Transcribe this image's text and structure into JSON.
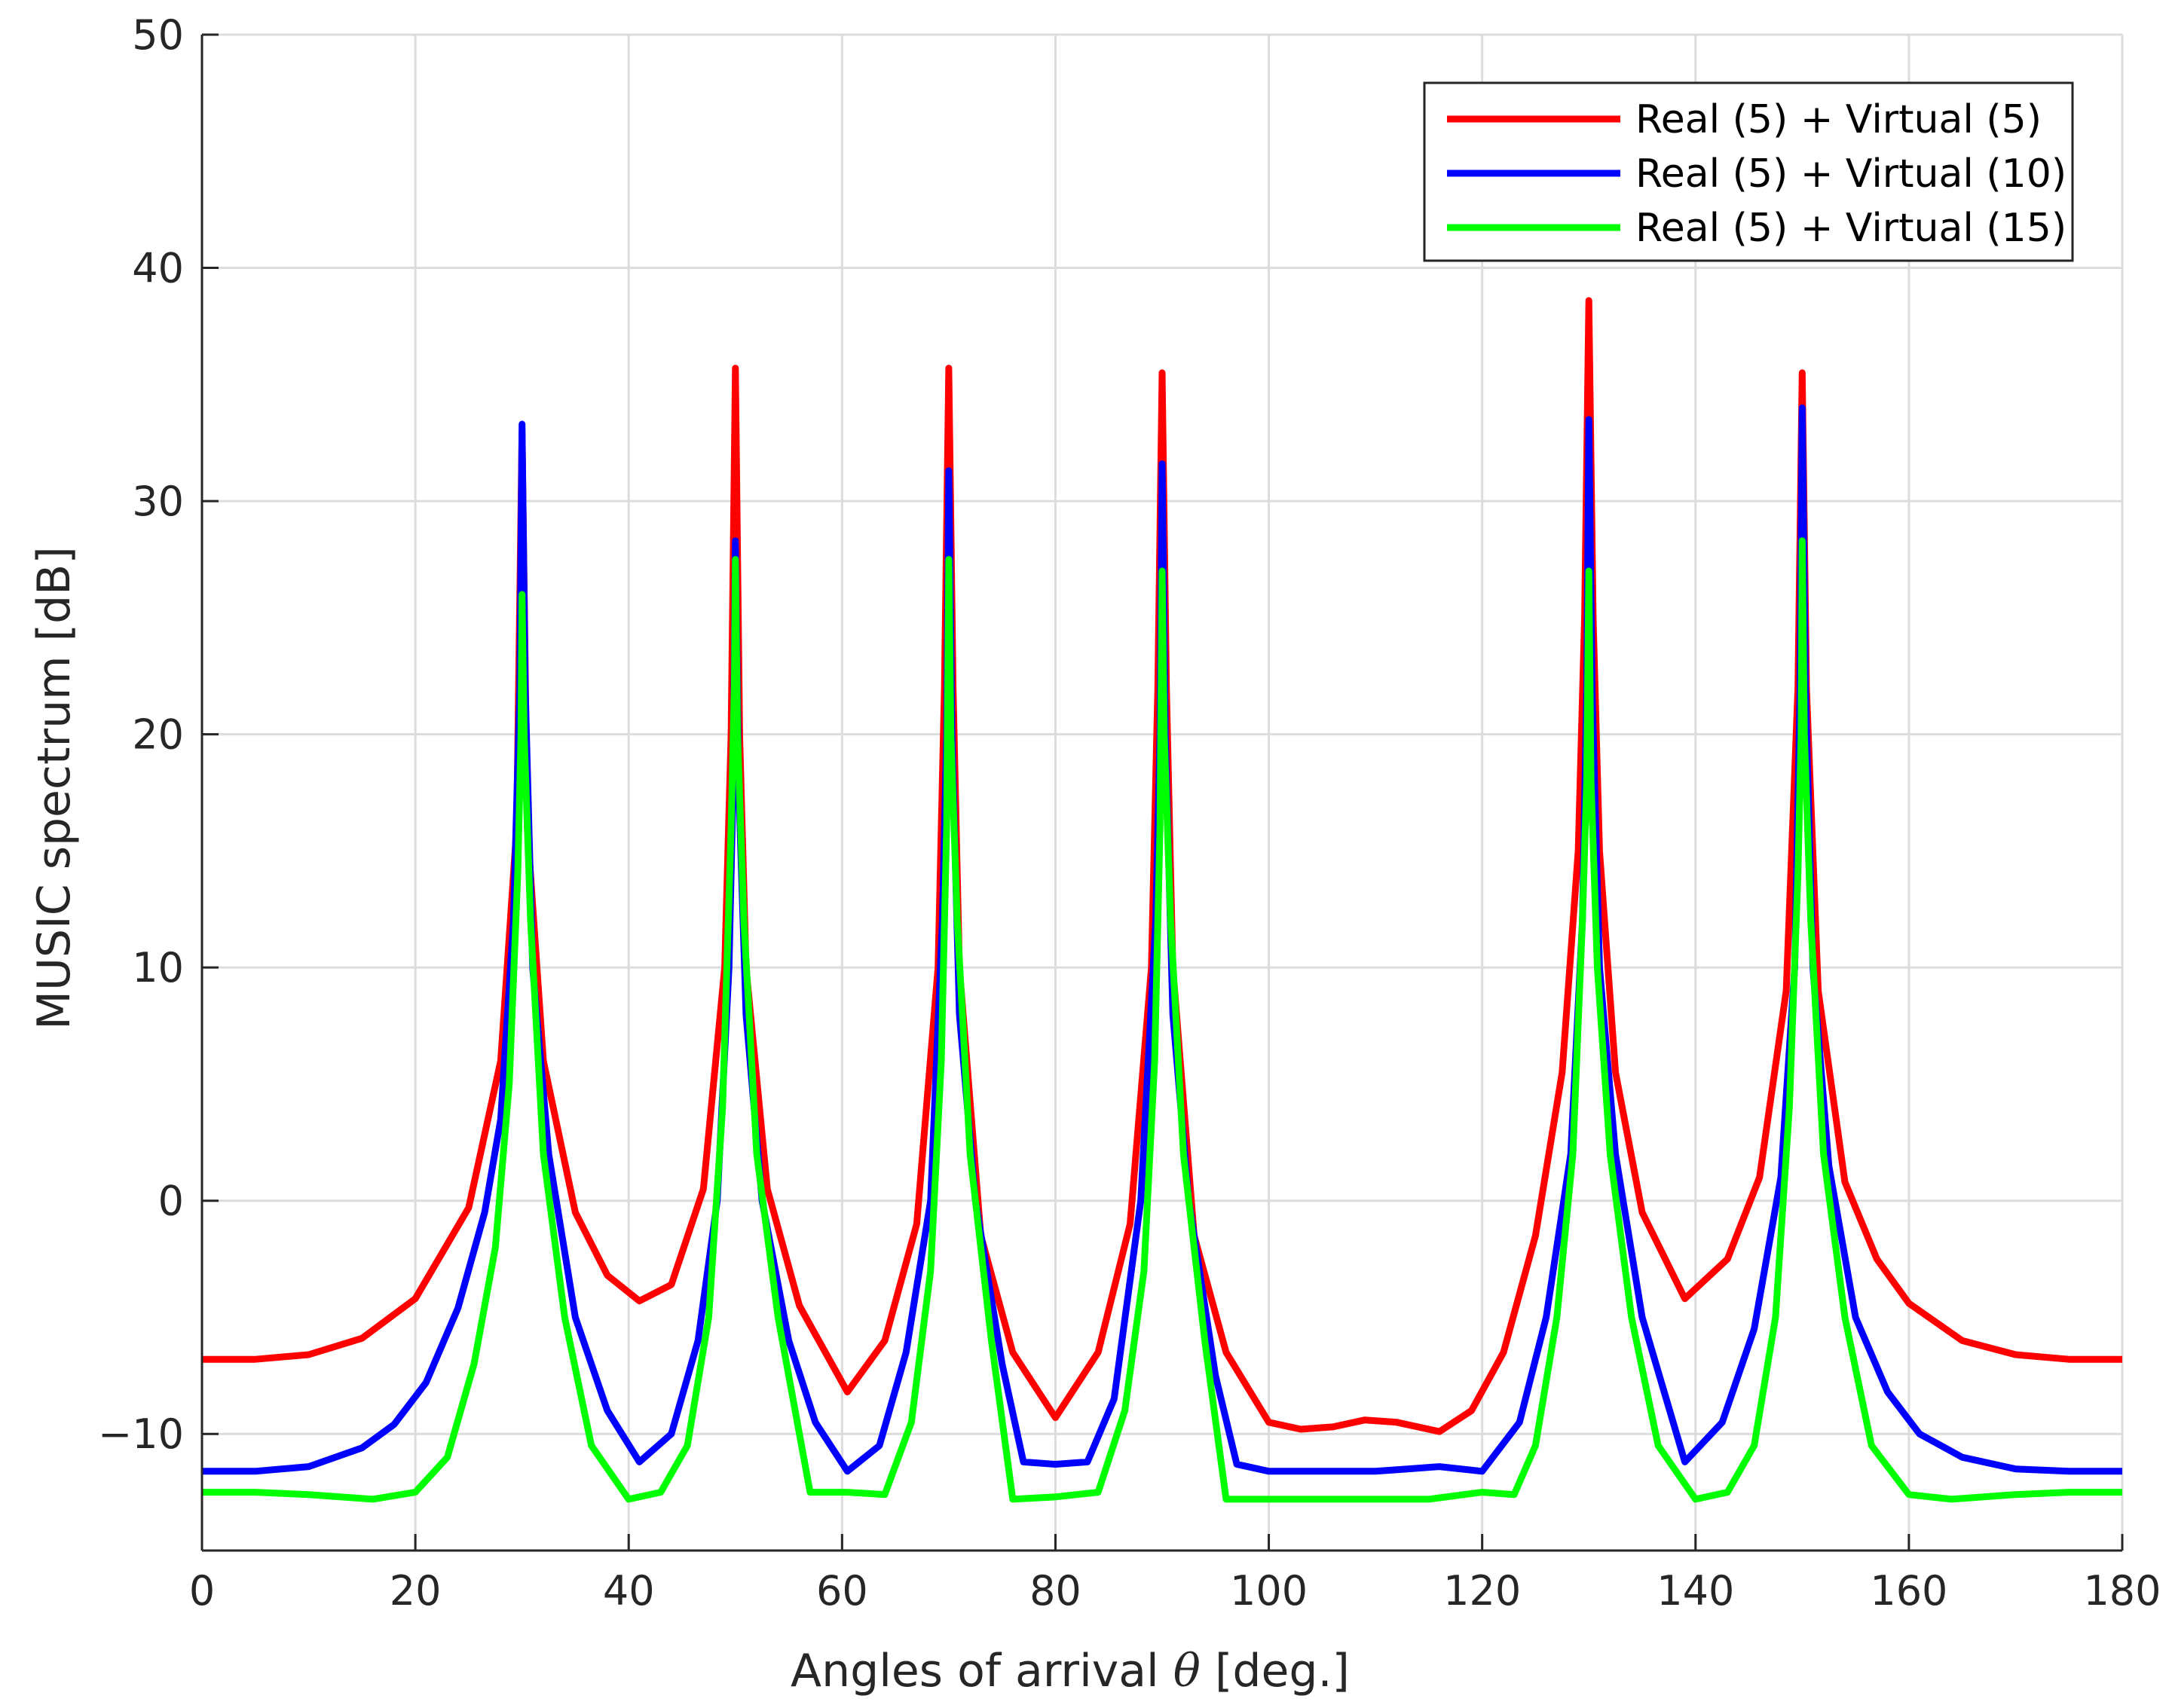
{
  "chart_data": {
    "type": "line",
    "title": "",
    "xlabel": "Angles of arrival θ [deg.]",
    "xlabel_parts": {
      "before": "Angles of arrival ",
      "symbol": "θ",
      "after": " [deg.]"
    },
    "ylabel": "MUSIC spectrum [dB]",
    "xlim": [
      0,
      180
    ],
    "ylim": [
      -15,
      50
    ],
    "x_ticks": [
      0,
      20,
      40,
      60,
      80,
      100,
      120,
      140,
      160,
      180
    ],
    "y_ticks": [
      -10,
      0,
      10,
      20,
      30,
      40,
      50
    ],
    "x_tick_labels": [
      "0",
      "20",
      "40",
      "60",
      "80",
      "100",
      "120",
      "140",
      "160",
      "180"
    ],
    "y_tick_labels": [
      "−10",
      "0",
      "10",
      "20",
      "30",
      "40",
      "50"
    ],
    "grid": true,
    "legend_position": "top-right",
    "peaks_deg": [
      30,
      50,
      70,
      90,
      130,
      150
    ],
    "series": [
      {
        "name": "Real (5) + Virtual (5)",
        "color": "#ff0000",
        "x": [
          0,
          5,
          10,
          15,
          20,
          25,
          28,
          29.5,
          30,
          30.5,
          32,
          35,
          38,
          41,
          44,
          47,
          49,
          49.6,
          50,
          50.4,
          51,
          53,
          56,
          60.5,
          64,
          67,
          69,
          69.6,
          70,
          70.4,
          71,
          73,
          76,
          80,
          84,
          87,
          89,
          89.6,
          90,
          90.4,
          91,
          93,
          96,
          100,
          103,
          106,
          109,
          112,
          116,
          119,
          122,
          125,
          127.5,
          129,
          129.6,
          130,
          130.4,
          131,
          132.5,
          135,
          139,
          143,
          146,
          148.5,
          149.6,
          150,
          150.4,
          151.5,
          154,
          157,
          160,
          165,
          170,
          175,
          180
        ],
        "values": [
          -6.8,
          -6.8,
          -6.6,
          -5.9,
          -4.2,
          -0.3,
          6.0,
          16.0,
          33.0,
          16.0,
          6.0,
          -0.5,
          -3.2,
          -4.3,
          -3.6,
          0.5,
          10.0,
          20.0,
          35.7,
          20.0,
          10.0,
          0.5,
          -4.5,
          -8.2,
          -6.0,
          -1.0,
          10.0,
          22.0,
          35.7,
          22.0,
          10.0,
          -1.5,
          -6.5,
          -9.3,
          -6.5,
          -1.0,
          10.0,
          22.0,
          35.5,
          22.0,
          10.0,
          -1.5,
          -6.5,
          -9.5,
          -9.8,
          -9.7,
          -9.4,
          -9.5,
          -9.9,
          -9.0,
          -6.5,
          -1.5,
          5.5,
          15.0,
          25.0,
          38.6,
          25.0,
          15.0,
          5.5,
          -0.5,
          -4.2,
          -2.5,
          1.0,
          9.0,
          22.0,
          35.5,
          22.0,
          9.0,
          0.8,
          -2.5,
          -4.4,
          -6.0,
          -6.6,
          -6.8,
          -6.8
        ]
      },
      {
        "name": "Real (5) + Virtual (10)",
        "color": "#0000ff",
        "x": [
          0,
          5,
          10,
          15,
          18,
          21,
          24,
          26.5,
          28,
          29.2,
          29.8,
          30,
          30.3,
          31,
          32.5,
          35,
          38,
          41,
          44,
          46.5,
          48.3,
          49.4,
          49.8,
          50,
          50.3,
          51,
          52.5,
          55,
          57.5,
          60.5,
          63.5,
          66,
          68.3,
          69.4,
          69.8,
          70,
          70.3,
          71,
          72.5,
          75,
          77,
          80,
          83,
          85.5,
          88,
          89.4,
          89.8,
          90,
          90.3,
          91,
          92.5,
          95,
          97,
          100,
          105,
          110,
          113,
          116,
          120,
          123.5,
          126,
          128.3,
          129.4,
          129.8,
          130,
          130.3,
          131,
          132.5,
          135,
          139,
          142.5,
          145.5,
          148,
          149.3,
          149.8,
          150,
          150.3,
          151,
          152.5,
          155,
          158,
          161,
          165,
          170,
          175,
          180
        ],
        "values": [
          -11.6,
          -11.6,
          -11.4,
          -10.6,
          -9.6,
          -7.8,
          -4.6,
          -0.5,
          3.5,
          12.0,
          22.0,
          33.3,
          22.0,
          10.0,
          2.0,
          -5.0,
          -9.0,
          -11.2,
          -10.0,
          -6.0,
          0.0,
          10.0,
          18.0,
          28.3,
          18.0,
          8.0,
          0.0,
          -6.0,
          -9.5,
          -11.6,
          -10.5,
          -6.5,
          0.0,
          12.0,
          20.0,
          31.3,
          20.0,
          8.0,
          0.0,
          -7.0,
          -11.2,
          -11.3,
          -11.2,
          -8.5,
          0.0,
          12.0,
          20.0,
          31.6,
          20.0,
          8.0,
          0.0,
          -7.5,
          -11.3,
          -11.6,
          -11.6,
          -11.6,
          -11.5,
          -11.4,
          -11.6,
          -9.5,
          -5.0,
          2.0,
          12.0,
          22.0,
          33.5,
          22.0,
          10.0,
          2.0,
          -5.0,
          -11.2,
          -9.5,
          -5.5,
          1.0,
          10.0,
          22.0,
          34.0,
          22.0,
          10.0,
          1.5,
          -5.0,
          -8.2,
          -10.0,
          -11.0,
          -11.5,
          -11.6,
          -11.6
        ]
      },
      {
        "name": "Real (5) + Virtual (15)",
        "color": "#00ff00",
        "x": [
          0,
          5,
          10,
          16,
          20,
          23,
          25.5,
          27.5,
          28.8,
          29.6,
          29.9,
          30,
          30.2,
          30.8,
          32,
          34,
          36.5,
          40,
          43,
          45.5,
          47.5,
          48.8,
          49.6,
          49.9,
          50,
          50.2,
          50.8,
          52,
          54,
          57,
          60.5,
          64,
          66.5,
          68.3,
          69.3,
          69.8,
          70,
          70.2,
          70.8,
          72,
          74,
          76,
          80,
          84,
          86.5,
          88.3,
          89.3,
          89.8,
          90,
          90.2,
          90.8,
          92,
          94,
          96,
          100,
          105,
          110,
          115,
          120,
          123,
          125,
          127,
          128.5,
          129.4,
          129.8,
          130,
          130.2,
          130.8,
          132,
          134,
          136.5,
          140,
          143,
          145.5,
          147.5,
          148.8,
          149.6,
          149.9,
          150,
          150.2,
          150.8,
          152,
          154,
          156.5,
          160,
          164,
          170,
          175,
          180
        ],
        "values": [
          -12.5,
          -12.5,
          -12.6,
          -12.8,
          -12.5,
          -11.0,
          -7.0,
          -2.0,
          5.0,
          14.0,
          20.0,
          26.0,
          20.0,
          12.0,
          2.0,
          -5.0,
          -10.5,
          -12.8,
          -12.5,
          -10.5,
          -5.0,
          4.0,
          16.0,
          22.0,
          27.5,
          20.0,
          12.0,
          2.0,
          -5.0,
          -12.5,
          -12.5,
          -12.6,
          -9.5,
          -3.0,
          6.0,
          16.0,
          27.5,
          20.0,
          12.0,
          2.0,
          -6.0,
          -12.8,
          -12.7,
          -12.5,
          -9.0,
          -3.0,
          6.0,
          16.0,
          27.0,
          20.0,
          12.0,
          2.0,
          -6.0,
          -12.8,
          -12.8,
          -12.8,
          -12.8,
          -12.8,
          -12.5,
          -12.6,
          -10.5,
          -5.0,
          2.0,
          12.0,
          18.0,
          27.0,
          18.0,
          10.0,
          2.0,
          -5.0,
          -10.5,
          -12.8,
          -12.5,
          -10.5,
          -5.0,
          4.0,
          14.0,
          20.0,
          28.3,
          20.0,
          12.0,
          2.0,
          -5.0,
          -10.5,
          -12.6,
          -12.8,
          -12.6,
          -12.5,
          -12.5
        ]
      }
    ]
  }
}
